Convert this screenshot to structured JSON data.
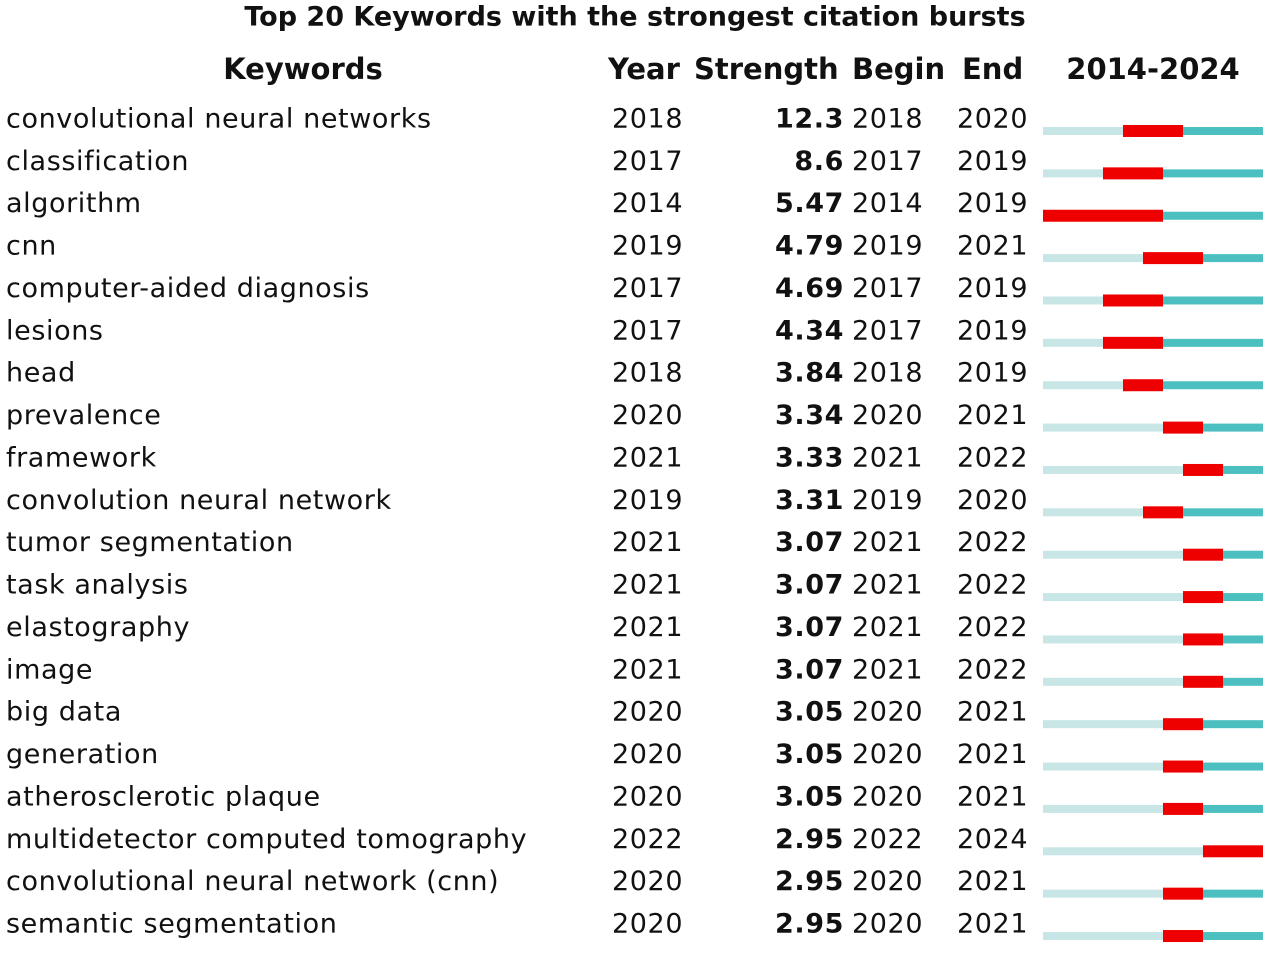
{
  "title": "Top 20 Keywords with the strongest citation bursts",
  "columns": {
    "keyword": "Keywords",
    "year": "Year",
    "strength": "Strength",
    "begin": "Begin",
    "end": "End",
    "timeline": {
      "value": [
        2014,
        2024
      ],
      "label": "2014-2024"
    }
  },
  "rows": [
    {
      "keyword": "convolutional neural networks",
      "year": 2018,
      "strength": 12.3,
      "begin": 2018,
      "end": 2020
    },
    {
      "keyword": "classification",
      "year": 2017,
      "strength": 8.6,
      "begin": 2017,
      "end": 2019
    },
    {
      "keyword": "algorithm",
      "year": 2014,
      "strength": 5.47,
      "begin": 2014,
      "end": 2019
    },
    {
      "keyword": "cnn",
      "year": 2019,
      "strength": 4.79,
      "begin": 2019,
      "end": 2021
    },
    {
      "keyword": "computer-aided diagnosis",
      "year": 2017,
      "strength": 4.69,
      "begin": 2017,
      "end": 2019
    },
    {
      "keyword": "lesions",
      "year": 2017,
      "strength": 4.34,
      "begin": 2017,
      "end": 2019
    },
    {
      "keyword": "head",
      "year": 2018,
      "strength": 3.84,
      "begin": 2018,
      "end": 2019
    },
    {
      "keyword": "prevalence",
      "year": 2020,
      "strength": 3.34,
      "begin": 2020,
      "end": 2021
    },
    {
      "keyword": "framework",
      "year": 2021,
      "strength": 3.33,
      "begin": 2021,
      "end": 2022
    },
    {
      "keyword": "convolution neural network",
      "year": 2019,
      "strength": 3.31,
      "begin": 2019,
      "end": 2020
    },
    {
      "keyword": "tumor segmentation",
      "year": 2021,
      "strength": 3.07,
      "begin": 2021,
      "end": 2022
    },
    {
      "keyword": "task analysis",
      "year": 2021,
      "strength": 3.07,
      "begin": 2021,
      "end": 2022
    },
    {
      "keyword": "elastography",
      "year": 2021,
      "strength": 3.07,
      "begin": 2021,
      "end": 2022
    },
    {
      "keyword": "image",
      "year": 2021,
      "strength": 3.07,
      "begin": 2021,
      "end": 2022
    },
    {
      "keyword": "big data",
      "year": 2020,
      "strength": 3.05,
      "begin": 2020,
      "end": 2021
    },
    {
      "keyword": "generation",
      "year": 2020,
      "strength": 3.05,
      "begin": 2020,
      "end": 2021
    },
    {
      "keyword": "atherosclerotic plaque",
      "year": 2020,
      "strength": 3.05,
      "begin": 2020,
      "end": 2021
    },
    {
      "keyword": "multidetector computed tomography",
      "year": 2022,
      "strength": 2.95,
      "begin": 2022,
      "end": 2024
    },
    {
      "keyword": "convolutional neural network (cnn)",
      "year": 2020,
      "strength": 2.95,
      "begin": 2020,
      "end": 2021
    },
    {
      "keyword": "semantic segmentation",
      "year": 2020,
      "strength": 2.95,
      "begin": 2020,
      "end": 2021
    }
  ]
}
